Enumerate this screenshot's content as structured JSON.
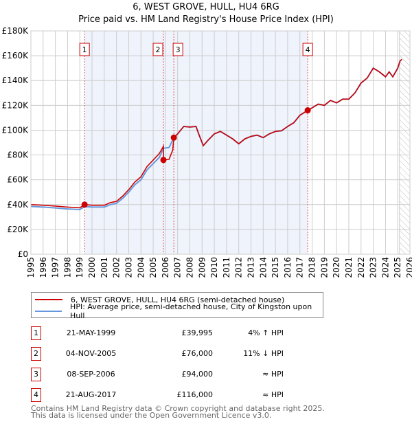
{
  "chart_data": {
    "type": "line",
    "title": "6, WEST GROVE, HULL, HU4 6RG",
    "subtitle": "Price paid vs. HM Land Registry's House Price Index (HPI)",
    "xlim": [
      1995,
      2026
    ],
    "ylim": [
      0,
      180000
    ],
    "yticks": [
      {
        "v": 0,
        "l": "£0"
      },
      {
        "v": 20000,
        "l": "£20K"
      },
      {
        "v": 40000,
        "l": "£40K"
      },
      {
        "v": 60000,
        "l": "£60K"
      },
      {
        "v": 80000,
        "l": "£80K"
      },
      {
        "v": 100000,
        "l": "£100K"
      },
      {
        "v": 120000,
        "l": "£120K"
      },
      {
        "v": 140000,
        "l": "£140K"
      },
      {
        "v": 160000,
        "l": "£160K"
      },
      {
        "v": 180000,
        "l": "£180K"
      }
    ],
    "xticks": [
      "1995",
      "1996",
      "1997",
      "1998",
      "1999",
      "2000",
      "2001",
      "2002",
      "2003",
      "2004",
      "2005",
      "2006",
      "2007",
      "2008",
      "2009",
      "2010",
      "2011",
      "2012",
      "2013",
      "2014",
      "2015",
      "2016",
      "2017",
      "2018",
      "2019",
      "2020",
      "2021",
      "2022",
      "2023",
      "2024",
      "2025",
      "2026"
    ],
    "shaded_range": [
      1999.39,
      2017.64
    ],
    "forecast_from": 2025.15,
    "colors": {
      "property": "#cc0000",
      "hpi": "#6699dd",
      "shade": "#eef3fc"
    },
    "series": [
      {
        "name": "HPI: Average price, semi-detached house, City of Kingston upon Hull",
        "key": "hpi",
        "points": [
          [
            1995,
            38500
          ],
          [
            1996,
            38000
          ],
          [
            1997,
            37300
          ],
          [
            1998,
            36500
          ],
          [
            1999,
            36000
          ],
          [
            1999.4,
            38400
          ],
          [
            2000,
            38000
          ],
          [
            2001,
            38000
          ],
          [
            2001.5,
            40000
          ],
          [
            2002,
            41000
          ],
          [
            2002.5,
            45000
          ],
          [
            2003,
            50000
          ],
          [
            2003.5,
            56000
          ],
          [
            2004,
            60000
          ],
          [
            2004.5,
            68000
          ],
          [
            2005,
            73000
          ],
          [
            2005.5,
            78000
          ],
          [
            2005.85,
            85400
          ],
          [
            2006.3,
            86000
          ],
          [
            2006.69,
            94000
          ],
          [
            2007,
            97000
          ],
          [
            2007.5,
            103000
          ],
          [
            2008,
            102500
          ],
          [
            2008.5,
            103000
          ],
          [
            2008.8,
            95000
          ],
          [
            2009.1,
            87500
          ],
          [
            2009.5,
            92000
          ],
          [
            2010,
            97000
          ],
          [
            2010.5,
            99000
          ],
          [
            2011,
            96000
          ],
          [
            2011.5,
            93000
          ],
          [
            2012,
            89000
          ],
          [
            2012.5,
            93000
          ],
          [
            2013,
            95000
          ],
          [
            2013.5,
            96000
          ],
          [
            2014,
            94000
          ],
          [
            2014.5,
            97000
          ],
          [
            2015,
            99000
          ],
          [
            2015.5,
            99500
          ],
          [
            2016,
            103000
          ],
          [
            2016.5,
            106000
          ],
          [
            2017,
            112000
          ],
          [
            2017.64,
            116000
          ],
          [
            2018,
            118000
          ],
          [
            2018.5,
            121000
          ],
          [
            2019,
            120000
          ],
          [
            2019.5,
            124000
          ],
          [
            2020,
            122000
          ],
          [
            2020.5,
            125000
          ],
          [
            2021,
            125000
          ],
          [
            2021.5,
            130000
          ],
          [
            2022,
            138000
          ],
          [
            2022.5,
            142000
          ],
          [
            2023,
            150000
          ],
          [
            2023.5,
            147000
          ],
          [
            2024,
            143000
          ],
          [
            2024.3,
            147000
          ],
          [
            2024.6,
            143000
          ],
          [
            2025,
            150000
          ],
          [
            2025.2,
            156000
          ],
          [
            2025.35,
            157000
          ]
        ]
      },
      {
        "name": "6, WEST GROVE, HULL, HU4 6RG (semi-detached house)",
        "key": "property",
        "points": [
          [
            1995,
            40000
          ],
          [
            1996,
            39500
          ],
          [
            1997,
            38800
          ],
          [
            1998,
            38000
          ],
          [
            1999,
            37400
          ],
          [
            1999.39,
            39995
          ],
          [
            2000,
            39500
          ],
          [
            2001,
            39500
          ],
          [
            2001.5,
            41600
          ],
          [
            2002,
            42600
          ],
          [
            2002.5,
            46800
          ],
          [
            2003,
            52000
          ],
          [
            2003.5,
            58200
          ],
          [
            2004,
            62400
          ],
          [
            2004.5,
            70700
          ],
          [
            2005,
            75900
          ],
          [
            2005.5,
            81100
          ],
          [
            2005.84,
            87000
          ],
          [
            2005.85,
            76000
          ],
          [
            2006.3,
            76500
          ],
          [
            2006.6,
            84000
          ],
          [
            2006.69,
            94000
          ],
          [
            2007,
            97000
          ],
          [
            2007.5,
            103000
          ],
          [
            2008,
            102500
          ],
          [
            2008.5,
            103000
          ],
          [
            2008.8,
            95000
          ],
          [
            2009.1,
            87500
          ],
          [
            2009.5,
            92000
          ],
          [
            2010,
            97000
          ],
          [
            2010.5,
            99000
          ],
          [
            2011,
            96000
          ],
          [
            2011.5,
            93000
          ],
          [
            2012,
            89000
          ],
          [
            2012.5,
            93000
          ],
          [
            2013,
            95000
          ],
          [
            2013.5,
            96000
          ],
          [
            2014,
            94000
          ],
          [
            2014.5,
            97000
          ],
          [
            2015,
            99000
          ],
          [
            2015.5,
            99500
          ],
          [
            2016,
            103000
          ],
          [
            2016.5,
            106000
          ],
          [
            2017,
            112000
          ],
          [
            2017.64,
            116000
          ],
          [
            2018,
            118000
          ],
          [
            2018.5,
            121000
          ],
          [
            2019,
            120000
          ],
          [
            2019.5,
            124000
          ],
          [
            2020,
            122000
          ],
          [
            2020.5,
            125000
          ],
          [
            2021,
            125000
          ],
          [
            2021.5,
            130000
          ],
          [
            2022,
            138000
          ],
          [
            2022.5,
            142000
          ],
          [
            2023,
            150000
          ],
          [
            2023.5,
            147000
          ],
          [
            2024,
            143000
          ],
          [
            2024.3,
            147000
          ],
          [
            2024.6,
            143000
          ],
          [
            2025,
            150000
          ],
          [
            2025.2,
            156000
          ],
          [
            2025.35,
            157000
          ]
        ]
      }
    ],
    "sales": [
      {
        "n": "1",
        "x": 1999.39,
        "y": 39995,
        "date": "21-MAY-1999",
        "price": "£39,995",
        "rel": "4% ↑ HPI"
      },
      {
        "n": "2",
        "x": 2005.84,
        "y": 76000,
        "date": "04-NOV-2005",
        "price": "£76,000",
        "rel": "11% ↓ HPI"
      },
      {
        "n": "3",
        "x": 2006.69,
        "y": 94000,
        "date": "08-SEP-2006",
        "price": "£94,000",
        "rel": "≈ HPI"
      },
      {
        "n": "4",
        "x": 2017.64,
        "y": 116000,
        "date": "21-AUG-2017",
        "price": "£116,000",
        "rel": "≈ HPI"
      }
    ],
    "legend": [
      "6, WEST GROVE, HULL, HU4 6RG (semi-detached house)",
      "HPI: Average price, semi-detached house, City of Kingston upon Hull"
    ]
  },
  "footer": [
    "Contains HM Land Registry data © Crown copyright and database right 2025.",
    "This data is licensed under the Open Government Licence v3.0."
  ]
}
